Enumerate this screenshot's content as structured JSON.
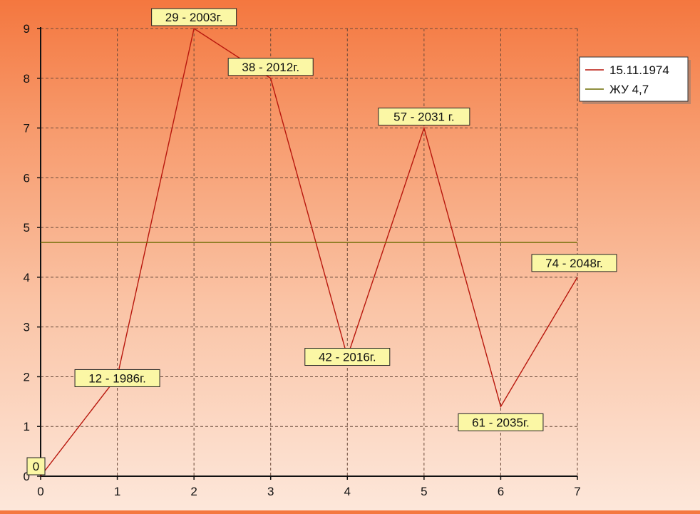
{
  "chart_data": {
    "type": "line",
    "x": [
      0,
      1,
      2,
      3,
      4,
      5,
      6,
      7
    ],
    "series": [
      {
        "name": "15.11.1974",
        "color": "#b8170d",
        "values": [
          0,
          2,
          9,
          8,
          2.4,
          7,
          1.4,
          4
        ]
      },
      {
        "name": "ЖУ 4,7",
        "color": "#6b6b00",
        "values": [
          4.7,
          4.7,
          4.7,
          4.7,
          4.7,
          4.7,
          4.7,
          4.7
        ]
      }
    ],
    "point_labels": [
      "0",
      "12 - 1986г.",
      "29 - 2003г.",
      "38 - 2012г.",
      "42 - 2016г.",
      "57 - 2031 г.",
      "61 - 2035г.",
      "74 - 2048г."
    ],
    "x_ticks": [
      "0",
      "1",
      "2",
      "3",
      "4",
      "5",
      "6",
      "7"
    ],
    "y_ticks": [
      "0",
      "1",
      "2",
      "3",
      "4",
      "5",
      "6",
      "7",
      "8",
      "9"
    ],
    "xlim": [
      0,
      7
    ],
    "ylim": [
      0,
      9
    ],
    "grid": true,
    "legend_position": "top-right",
    "label_box_color": "#fbf7a5"
  }
}
